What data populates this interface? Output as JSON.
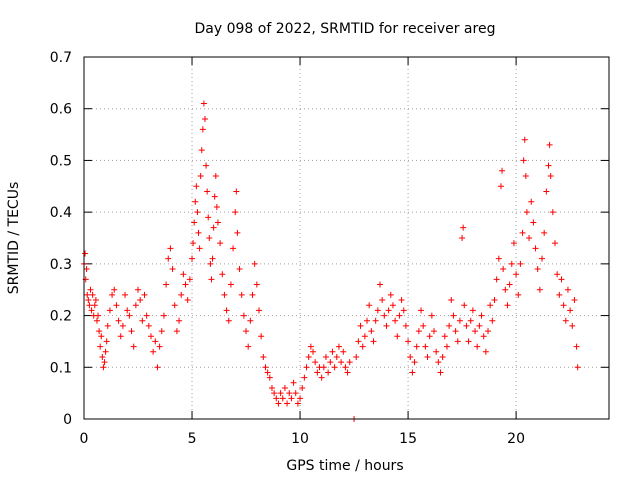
{
  "chart_data": {
    "type": "scatter",
    "title": "Day 098 of 2022, SRMTID for receiver areg",
    "xlabel": "GPS time / hours",
    "ylabel": "SRMTID / TECUs",
    "xlim": [
      0,
      24.3
    ],
    "ylim": [
      0,
      0.7
    ],
    "xticks": [
      0,
      5,
      10,
      15,
      20
    ],
    "xtick_labels": [
      "0",
      "5",
      "10",
      "15",
      "20"
    ],
    "yticks": [
      0,
      0.1,
      0.2,
      0.3,
      0.4,
      0.5,
      0.6,
      0.7
    ],
    "ytick_labels": [
      "0",
      "0.1",
      "0.2",
      "0.3",
      "0.4",
      "0.5",
      "0.6",
      "0.7"
    ],
    "grid": true,
    "marker": "plus",
    "series": [
      {
        "name": "SRMTID",
        "color": "#ff0000",
        "points": [
          [
            0.0,
            0.3
          ],
          [
            0.05,
            0.32
          ],
          [
            0.08,
            0.27
          ],
          [
            0.12,
            0.29
          ],
          [
            0.15,
            0.24
          ],
          [
            0.2,
            0.23
          ],
          [
            0.25,
            0.22
          ],
          [
            0.3,
            0.25
          ],
          [
            0.35,
            0.21
          ],
          [
            0.4,
            0.24
          ],
          [
            0.45,
            0.2
          ],
          [
            0.5,
            0.22
          ],
          [
            0.55,
            0.23
          ],
          [
            0.6,
            0.19
          ],
          [
            0.65,
            0.2
          ],
          [
            0.7,
            0.17
          ],
          [
            0.75,
            0.14
          ],
          [
            0.8,
            0.16
          ],
          [
            0.85,
            0.12
          ],
          [
            0.9,
            0.1
          ],
          [
            0.95,
            0.11
          ],
          [
            1.0,
            0.13
          ],
          [
            1.05,
            0.15
          ],
          [
            1.1,
            0.18
          ],
          [
            1.2,
            0.21
          ],
          [
            1.3,
            0.24
          ],
          [
            1.4,
            0.25
          ],
          [
            1.5,
            0.22
          ],
          [
            1.6,
            0.19
          ],
          [
            1.7,
            0.16
          ],
          [
            1.8,
            0.18
          ],
          [
            1.9,
            0.24
          ],
          [
            2.0,
            0.21
          ],
          [
            2.1,
            0.2
          ],
          [
            2.2,
            0.17
          ],
          [
            2.3,
            0.14
          ],
          [
            2.4,
            0.22
          ],
          [
            2.5,
            0.25
          ],
          [
            2.6,
            0.23
          ],
          [
            2.7,
            0.19
          ],
          [
            2.8,
            0.24
          ],
          [
            2.9,
            0.2
          ],
          [
            3.0,
            0.18
          ],
          [
            3.1,
            0.16
          ],
          [
            3.2,
            0.13
          ],
          [
            3.3,
            0.15
          ],
          [
            3.4,
            0.1
          ],
          [
            3.5,
            0.14
          ],
          [
            3.6,
            0.17
          ],
          [
            3.7,
            0.2
          ],
          [
            3.8,
            0.26
          ],
          [
            3.9,
            0.31
          ],
          [
            4.0,
            0.33
          ],
          [
            4.1,
            0.29
          ],
          [
            4.2,
            0.22
          ],
          [
            4.3,
            0.17
          ],
          [
            4.4,
            0.19
          ],
          [
            4.5,
            0.24
          ],
          [
            4.6,
            0.28
          ],
          [
            4.7,
            0.26
          ],
          [
            4.8,
            0.23
          ],
          [
            4.9,
            0.27
          ],
          [
            5.0,
            0.31
          ],
          [
            5.05,
            0.34
          ],
          [
            5.1,
            0.38
          ],
          [
            5.15,
            0.42
          ],
          [
            5.2,
            0.45
          ],
          [
            5.25,
            0.4
          ],
          [
            5.3,
            0.36
          ],
          [
            5.35,
            0.33
          ],
          [
            5.4,
            0.47
          ],
          [
            5.45,
            0.52
          ],
          [
            5.5,
            0.56
          ],
          [
            5.55,
            0.61
          ],
          [
            5.6,
            0.58
          ],
          [
            5.65,
            0.49
          ],
          [
            5.7,
            0.44
          ],
          [
            5.75,
            0.39
          ],
          [
            5.8,
            0.35
          ],
          [
            5.85,
            0.3
          ],
          [
            5.9,
            0.27
          ],
          [
            5.95,
            0.31
          ],
          [
            6.0,
            0.37
          ],
          [
            6.05,
            0.43
          ],
          [
            6.1,
            0.47
          ],
          [
            6.15,
            0.41
          ],
          [
            6.2,
            0.38
          ],
          [
            6.3,
            0.34
          ],
          [
            6.4,
            0.28
          ],
          [
            6.5,
            0.24
          ],
          [
            6.6,
            0.21
          ],
          [
            6.7,
            0.19
          ],
          [
            6.8,
            0.26
          ],
          [
            6.9,
            0.33
          ],
          [
            7.0,
            0.4
          ],
          [
            7.05,
            0.44
          ],
          [
            7.1,
            0.36
          ],
          [
            7.2,
            0.29
          ],
          [
            7.3,
            0.24
          ],
          [
            7.4,
            0.2
          ],
          [
            7.5,
            0.17
          ],
          [
            7.6,
            0.14
          ],
          [
            7.7,
            0.19
          ],
          [
            7.8,
            0.24
          ],
          [
            7.9,
            0.3
          ],
          [
            8.0,
            0.26
          ],
          [
            8.1,
            0.21
          ],
          [
            8.2,
            0.16
          ],
          [
            8.3,
            0.12
          ],
          [
            8.4,
            0.1
          ],
          [
            8.5,
            0.09
          ],
          [
            8.6,
            0.08
          ],
          [
            8.7,
            0.06
          ],
          [
            8.8,
            0.05
          ],
          [
            8.9,
            0.04
          ],
          [
            9.0,
            0.03
          ],
          [
            9.1,
            0.05
          ],
          [
            9.2,
            0.04
          ],
          [
            9.3,
            0.06
          ],
          [
            9.4,
            0.03
          ],
          [
            9.5,
            0.05
          ],
          [
            9.6,
            0.04
          ],
          [
            9.7,
            0.07
          ],
          [
            9.8,
            0.05
          ],
          [
            9.9,
            0.03
          ],
          [
            10.0,
            0.04
          ],
          [
            10.1,
            0.06
          ],
          [
            10.2,
            0.08
          ],
          [
            10.3,
            0.1
          ],
          [
            10.4,
            0.12
          ],
          [
            10.5,
            0.14
          ],
          [
            10.6,
            0.13
          ],
          [
            10.7,
            0.11
          ],
          [
            10.8,
            0.09
          ],
          [
            10.9,
            0.1
          ],
          [
            11.0,
            0.08
          ],
          [
            11.1,
            0.1
          ],
          [
            11.2,
            0.12
          ],
          [
            11.3,
            0.09
          ],
          [
            11.4,
            0.11
          ],
          [
            11.5,
            0.13
          ],
          [
            11.6,
            0.1
          ],
          [
            11.7,
            0.12
          ],
          [
            11.8,
            0.14
          ],
          [
            11.9,
            0.11
          ],
          [
            12.0,
            0.13
          ],
          [
            12.1,
            0.1
          ],
          [
            12.2,
            0.09
          ],
          [
            12.3,
            0.11
          ],
          [
            12.5,
            0.0
          ],
          [
            12.6,
            0.12
          ],
          [
            12.7,
            0.15
          ],
          [
            12.8,
            0.18
          ],
          [
            12.9,
            0.14
          ],
          [
            13.0,
            0.16
          ],
          [
            13.1,
            0.19
          ],
          [
            13.2,
            0.22
          ],
          [
            13.3,
            0.17
          ],
          [
            13.4,
            0.15
          ],
          [
            13.5,
            0.19
          ],
          [
            13.6,
            0.21
          ],
          [
            13.7,
            0.26
          ],
          [
            13.8,
            0.23
          ],
          [
            13.9,
            0.2
          ],
          [
            14.0,
            0.18
          ],
          [
            14.1,
            0.21
          ],
          [
            14.2,
            0.24
          ],
          [
            14.3,
            0.22
          ],
          [
            14.4,
            0.19
          ],
          [
            14.5,
            0.16
          ],
          [
            14.6,
            0.2
          ],
          [
            14.7,
            0.23
          ],
          [
            14.8,
            0.21
          ],
          [
            14.9,
            0.18
          ],
          [
            15.0,
            0.15
          ],
          [
            15.1,
            0.12
          ],
          [
            15.2,
            0.09
          ],
          [
            15.3,
            0.11
          ],
          [
            15.4,
            0.14
          ],
          [
            15.5,
            0.17
          ],
          [
            15.6,
            0.21
          ],
          [
            15.7,
            0.18
          ],
          [
            15.8,
            0.14
          ],
          [
            15.9,
            0.12
          ],
          [
            16.0,
            0.16
          ],
          [
            16.1,
            0.2
          ],
          [
            16.2,
            0.17
          ],
          [
            16.3,
            0.13
          ],
          [
            16.4,
            0.11
          ],
          [
            16.5,
            0.09
          ],
          [
            16.6,
            0.12
          ],
          [
            16.7,
            0.16
          ],
          [
            16.8,
            0.14
          ],
          [
            16.9,
            0.18
          ],
          [
            17.0,
            0.23
          ],
          [
            17.1,
            0.2
          ],
          [
            17.2,
            0.17
          ],
          [
            17.3,
            0.15
          ],
          [
            17.4,
            0.19
          ],
          [
            17.5,
            0.35
          ],
          [
            17.55,
            0.37
          ],
          [
            17.6,
            0.22
          ],
          [
            17.7,
            0.18
          ],
          [
            17.8,
            0.15
          ],
          [
            17.9,
            0.19
          ],
          [
            18.0,
            0.21
          ],
          [
            18.1,
            0.17
          ],
          [
            18.2,
            0.14
          ],
          [
            18.3,
            0.18
          ],
          [
            18.4,
            0.2
          ],
          [
            18.5,
            0.16
          ],
          [
            18.6,
            0.13
          ],
          [
            18.7,
            0.17
          ],
          [
            18.8,
            0.22
          ],
          [
            18.9,
            0.19
          ],
          [
            19.0,
            0.23
          ],
          [
            19.1,
            0.27
          ],
          [
            19.2,
            0.31
          ],
          [
            19.3,
            0.45
          ],
          [
            19.35,
            0.48
          ],
          [
            19.4,
            0.29
          ],
          [
            19.5,
            0.25
          ],
          [
            19.6,
            0.22
          ],
          [
            19.7,
            0.26
          ],
          [
            19.8,
            0.3
          ],
          [
            19.9,
            0.34
          ],
          [
            20.0,
            0.28
          ],
          [
            20.1,
            0.24
          ],
          [
            20.2,
            0.3
          ],
          [
            20.3,
            0.36
          ],
          [
            20.35,
            0.5
          ],
          [
            20.4,
            0.54
          ],
          [
            20.45,
            0.47
          ],
          [
            20.5,
            0.4
          ],
          [
            20.6,
            0.35
          ],
          [
            20.7,
            0.42
          ],
          [
            20.8,
            0.38
          ],
          [
            20.9,
            0.33
          ],
          [
            21.0,
            0.29
          ],
          [
            21.1,
            0.25
          ],
          [
            21.2,
            0.31
          ],
          [
            21.3,
            0.36
          ],
          [
            21.4,
            0.44
          ],
          [
            21.5,
            0.49
          ],
          [
            21.55,
            0.53
          ],
          [
            21.6,
            0.47
          ],
          [
            21.7,
            0.4
          ],
          [
            21.8,
            0.34
          ],
          [
            21.9,
            0.28
          ],
          [
            22.0,
            0.24
          ],
          [
            22.1,
            0.27
          ],
          [
            22.2,
            0.22
          ],
          [
            22.3,
            0.19
          ],
          [
            22.4,
            0.25
          ],
          [
            22.5,
            0.21
          ],
          [
            22.6,
            0.18
          ],
          [
            22.7,
            0.23
          ],
          [
            22.8,
            0.14
          ],
          [
            22.85,
            0.1
          ]
        ]
      }
    ]
  }
}
